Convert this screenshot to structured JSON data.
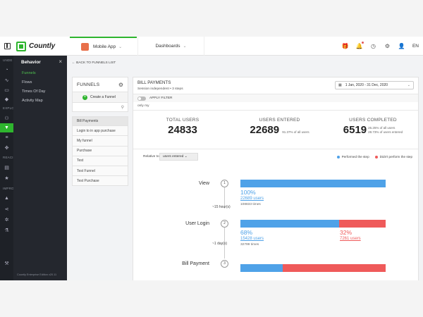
{
  "topbar": {
    "brand": "Countly",
    "app_name": "Mobile App",
    "app_color": "#e8704a",
    "dashboards_label": "Dashboards",
    "language": "EN"
  },
  "rail": {
    "sections": [
      "UNDE",
      "EXPLO",
      "REACI",
      "IMPRO"
    ]
  },
  "subnav": {
    "header": "Behavior",
    "items": [
      "Funnels",
      "Flows",
      "Times Of Day",
      "Activity Map"
    ],
    "active": "Funnels",
    "footer": "Countly Enterprise Edition v20.11"
  },
  "main": {
    "back_label": "BACK TO FUNNELS LIST"
  },
  "funnels_panel": {
    "title": "FUNNELS",
    "create_label": "Create a Funnel",
    "items": [
      "Bill Payments",
      "Login to in app purchase",
      "My funnel",
      "Purchase",
      "Test",
      "Test Funnel",
      "Test Purchase"
    ]
  },
  "funnel": {
    "title": "BILL PAYMENTS",
    "subtitle": "Session independent  •  3 steps",
    "date_range": "1 Jan, 2020 - 31 Dec, 2020",
    "apply_filter_label": "APPLY FILTER",
    "only_my": "only my",
    "stats": {
      "total_users_label": "TOTAL USERS",
      "total_users": "24833",
      "users_entered_label": "USERS ENTERED",
      "users_entered": "22689",
      "users_entered_pct": "91.37% of all users",
      "users_completed_label": "USERS COMPLETED",
      "users_completed": "6519",
      "users_completed_pct1": "26.25% of all users",
      "users_completed_pct2": "28.73% of users entered"
    },
    "relative_label": "Relative to:",
    "relative_value": "users entered",
    "legend_performed": "Performed the step",
    "legend_not_performed": "Didn't perform the step",
    "color_performed": "#4fa2e8",
    "color_not_performed": "#ef5a5a",
    "steps": [
      {
        "num": "1",
        "name": "View",
        "pct": "100%",
        "users": "22689 users",
        "times": "108833 times",
        "fill": 1.0
      },
      {
        "num": "2",
        "name": "User Login",
        "pct": "68%",
        "users": "15428 users",
        "times": "32799 times",
        "not_pct": "32%",
        "not_users": "7261 users",
        "fill": 0.68
      },
      {
        "num": "3",
        "name": "Bill Payment",
        "fill": 0.29
      }
    ],
    "time_between": [
      "~15 hour(s)",
      "~1 day(s)"
    ]
  }
}
